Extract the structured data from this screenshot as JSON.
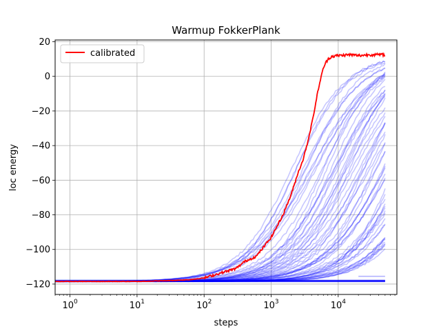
{
  "chart_data": {
    "type": "line",
    "title": "Warmup FokkerPlank",
    "xlabel": "steps",
    "ylabel": "loc energy",
    "xscale": "log",
    "xlim": [
      0.6,
      75000
    ],
    "ylim": [
      -126,
      21
    ],
    "grid": true,
    "legend": {
      "position": "top-left",
      "entries": [
        {
          "label": "calibrated",
          "color": "#ff0000"
        }
      ]
    },
    "x_ticks": [
      {
        "value": 1,
        "base": "10",
        "exp": "0"
      },
      {
        "value": 10,
        "base": "10",
        "exp": "1"
      },
      {
        "value": 100,
        "base": "10",
        "exp": "2"
      },
      {
        "value": 1000,
        "base": "10",
        "exp": "3"
      },
      {
        "value": 10000,
        "base": "10",
        "exp": "4"
      }
    ],
    "y_ticks": [
      {
        "value": 20,
        "label": "20"
      },
      {
        "value": 0,
        "label": "0"
      },
      {
        "value": -20,
        "label": "−20"
      },
      {
        "value": -40,
        "label": "−40"
      },
      {
        "value": -60,
        "label": "−60"
      },
      {
        "value": -80,
        "label": "−80"
      },
      {
        "value": -100,
        "label": "−100"
      },
      {
        "value": -120,
        "label": "−120"
      }
    ],
    "calibrated": {
      "name": "calibrated",
      "color": "#ff0000",
      "x": [
        0.6,
        10,
        30,
        60,
        100,
        200,
        300,
        400,
        600,
        1000,
        1500,
        2000,
        2500,
        3000,
        3500,
        4000,
        4500,
        5000,
        6000,
        7000,
        8000,
        10000,
        15000,
        20000,
        30000,
        50000
      ],
      "y": [
        -118.5,
        -118.5,
        -118,
        -117.5,
        -116.5,
        -113,
        -111,
        -107,
        -104,
        -93,
        -80,
        -68,
        -56,
        -48,
        -38,
        -28,
        -18,
        -8,
        5,
        10,
        11.5,
        12,
        12.5,
        12,
        12.5,
        12.5
      ]
    },
    "ensemble": {
      "color": "#0000ff",
      "count": 60,
      "plateau": 12.5,
      "baseline": -118.5,
      "x_range": [
        0.6,
        50000
      ],
      "midpoint_log10_min": 3.3,
      "midpoint_log10_max": 5.5,
      "note": "individual walker runs, semi-transparent"
    }
  }
}
